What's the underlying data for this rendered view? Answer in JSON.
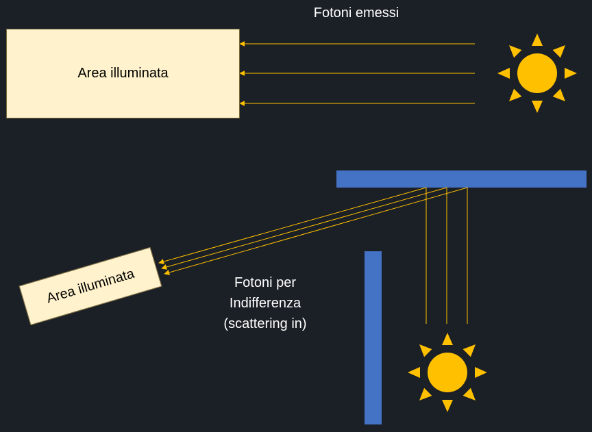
{
  "top": {
    "title": "Fotoni emessi",
    "area_label": "Area illuminata"
  },
  "bottom": {
    "area_label": "Area illuminata",
    "caption_lines": [
      "Fotoni per",
      "Indifferenza",
      "(scattering in)"
    ]
  },
  "colors": {
    "background": "#1b1f26",
    "area_fill": "#fff2cc",
    "ray": "#ffc000",
    "sun": "#ffc000",
    "wall": "#4472c4",
    "text": "#ffffff"
  },
  "icons": [
    "sun-icon",
    "sun-icon"
  ]
}
